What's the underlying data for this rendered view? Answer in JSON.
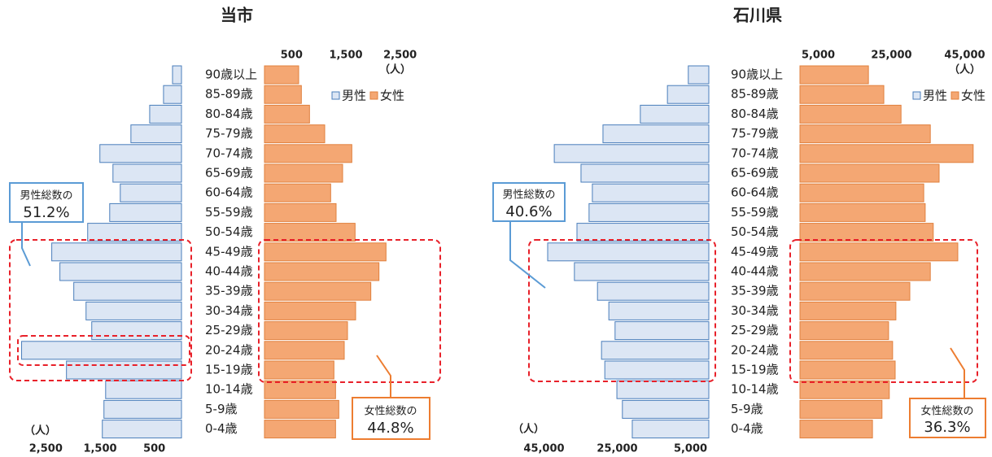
{
  "chart_data": [
    {
      "type": "pyramid",
      "title": "当市",
      "unit": "（人）",
      "categories": [
        "90歳以上",
        "85-89歳",
        "80-84歳",
        "75-79歳",
        "70-74歳",
        "65-69歳",
        "60-64歳",
        "55-59歳",
        "50-54歳",
        "45-49歳",
        "40-44歳",
        "35-39歳",
        "30-34歳",
        "25-29歳",
        "20-24歳",
        "15-19歳",
        "10-14歳",
        "5-9歳",
        "0-4歳"
      ],
      "series": [
        {
          "name": "男性",
          "color": "#dce6f4",
          "values": [
            165,
            331,
            586,
            932,
            1504,
            1263,
            1128,
            1323,
            1729,
            2391,
            2241,
            1985,
            1759,
            1654,
            2947,
            2120,
            1398,
            1429,
            1459
          ]
        },
        {
          "name": "女性",
          "color": "#f4a773",
          "values": [
            630,
            680,
            830,
            1110,
            1610,
            1440,
            1220,
            1320,
            1670,
            2240,
            2110,
            1960,
            1680,
            1530,
            1470,
            1280,
            1310,
            1370,
            1310
          ]
        }
      ],
      "xlim": [
        0,
        3300
      ],
      "xticks": [
        500,
        {
          "value": 1500,
          "label": "1,500"
        },
        {
          "value": 2500,
          "label": "2,500"
        }
      ],
      "annotations": {
        "male_caption": "男性総数の",
        "male_share": "51.2%",
        "female_caption": "女性総数の",
        "female_share": "44.8%"
      }
    },
    {
      "type": "pyramid",
      "title": "石川県",
      "unit": "（人）",
      "categories": [
        "90歳以上",
        "85-89歳",
        "80-84歳",
        "75-79歳",
        "70-74歳",
        "65-69歳",
        "60-64歳",
        "55-59歳",
        "50-54歳",
        "45-49歳",
        "40-44歳",
        "35-39歳",
        "30-34歳",
        "25-29歳",
        "20-24歳",
        "15-19歳",
        "10-14歳",
        "5-9歳",
        "0-4歳"
      ],
      "series": [
        {
          "name": "男性",
          "color": "#dce6f4",
          "values": [
            5600,
            11300,
            18700,
            28900,
            42200,
            34900,
            31800,
            32700,
            36000,
            44000,
            36700,
            30400,
            27300,
            25600,
            29300,
            28400,
            25100,
            23600,
            20900
          ]
        },
        {
          "name": "女性",
          "color": "#f4a773",
          "values": [
            18700,
            22900,
            27600,
            35600,
            47300,
            38000,
            33800,
            34200,
            36400,
            43100,
            35600,
            30000,
            26200,
            24200,
            25300,
            26000,
            24400,
            22400,
            19800
          ]
        }
      ],
      "xlim": [
        0,
        50000
      ],
      "xticks": [
        {
          "value": 5000,
          "label": "5,000"
        },
        {
          "value": 25000,
          "label": "25,000"
        },
        {
          "value": 45000,
          "label": "45,000"
        }
      ],
      "annotations": {
        "male_caption": "男性総数の",
        "male_share": "40.6%",
        "female_caption": "女性総数の",
        "female_share": "36.3%"
      }
    }
  ]
}
